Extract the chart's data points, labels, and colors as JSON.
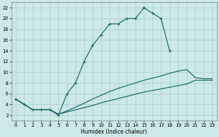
{
  "xlabel": "Humidex (Indice chaleur)",
  "bg_color": "#cce8e8",
  "line_color": "#1a6b6b",
  "xlim": [
    -0.5,
    23.5
  ],
  "ylim": [
    1,
    23
  ],
  "yticks": [
    2,
    4,
    6,
    8,
    10,
    12,
    14,
    16,
    18,
    20,
    22
  ],
  "xticks": [
    0,
    1,
    2,
    3,
    4,
    5,
    6,
    7,
    8,
    9,
    10,
    11,
    12,
    13,
    14,
    15,
    16,
    17,
    18,
    19,
    20,
    21,
    22,
    23
  ],
  "line1_x": [
    0,
    1,
    2,
    3,
    4,
    5,
    6,
    7,
    8,
    9,
    10,
    11,
    12,
    13,
    14,
    15,
    16,
    17,
    18
  ],
  "line1_y": [
    5,
    4,
    3,
    3,
    3,
    2,
    6,
    8,
    12,
    15,
    17,
    19,
    19,
    20,
    20,
    22,
    21,
    20,
    14
  ],
  "line2_x": [
    0,
    1,
    2,
    3,
    4,
    5,
    6,
    7,
    8,
    9,
    10,
    11,
    12,
    13,
    14,
    15,
    16,
    17,
    18,
    19,
    20,
    21,
    22,
    23
  ],
  "line2_y": [
    5,
    4,
    3,
    3,
    3,
    2.2,
    2.6,
    3.0,
    3.4,
    3.8,
    4.3,
    4.7,
    5.1,
    5.5,
    5.9,
    6.3,
    6.6,
    6.9,
    7.2,
    7.5,
    7.8,
    8.5,
    8.5,
    8.5
  ],
  "line3_x": [
    0,
    1,
    2,
    3,
    4,
    5,
    6,
    7,
    8,
    9,
    10,
    11,
    12,
    13,
    14,
    15,
    16,
    17,
    18,
    19,
    20,
    21,
    22,
    23
  ],
  "line3_y": [
    5,
    4,
    3,
    3,
    3,
    2.2,
    2.8,
    3.5,
    4.2,
    5.0,
    5.7,
    6.4,
    7.0,
    7.5,
    8.0,
    8.5,
    8.9,
    9.3,
    9.8,
    10.2,
    10.5,
    9.0,
    8.8,
    8.8
  ]
}
